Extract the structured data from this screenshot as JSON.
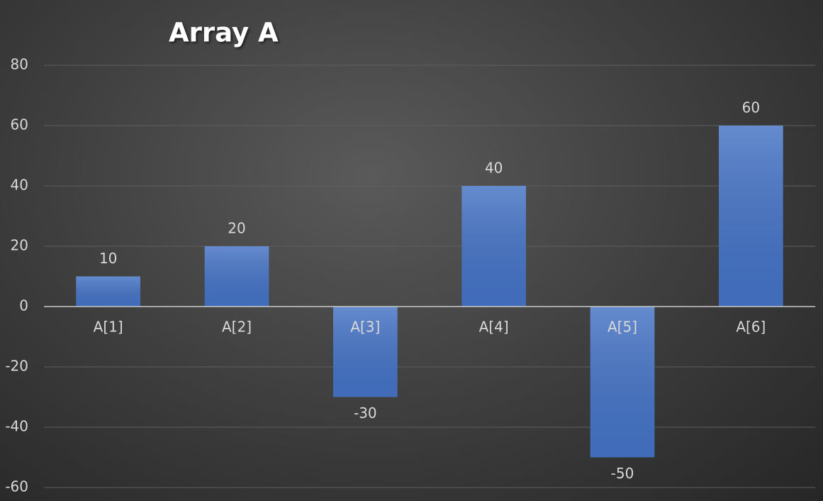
{
  "chart_data": {
    "type": "bar",
    "title": "Array A",
    "categories": [
      "A[1]",
      "A[2]",
      "A[3]",
      "A[4]",
      "A[5]",
      "A[6]"
    ],
    "values": [
      10,
      20,
      -30,
      40,
      -50,
      60
    ],
    "color": "#4472c4",
    "ylim": [
      -60,
      80
    ],
    "yticks": [
      -60,
      -40,
      -20,
      0,
      20,
      40,
      60,
      80
    ],
    "grid": true
  }
}
